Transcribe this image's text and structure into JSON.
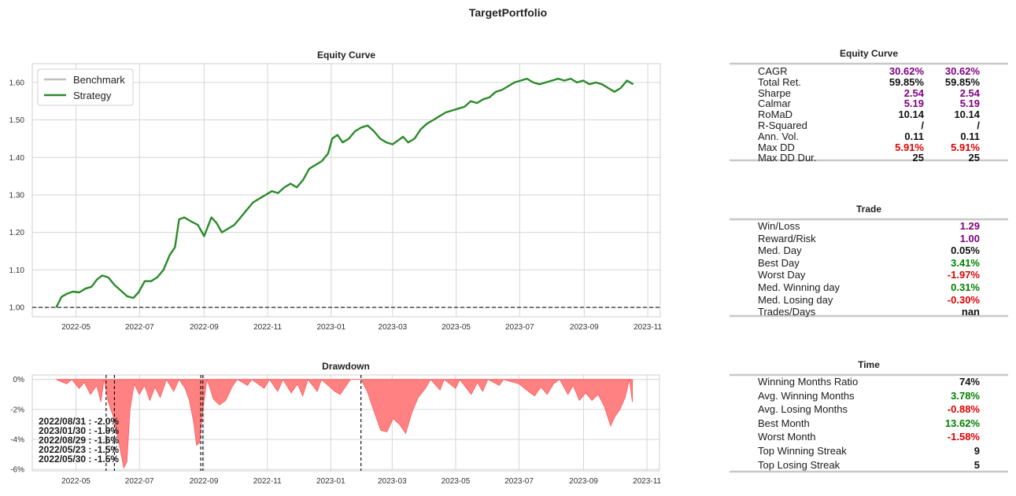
{
  "title": "TargetPortfolio",
  "chart_data": [
    {
      "type": "line",
      "title": "Equity Curve",
      "xlabel": "",
      "ylabel": "",
      "x_start": "2022-04-12",
      "x_end": "2023-10-18",
      "xlim": [
        "2022-03-20",
        "2023-11-13"
      ],
      "ylim": [
        0.975,
        1.65
      ],
      "x_ticks": [
        "2022-05",
        "2022-07",
        "2022-09",
        "2022-11",
        "2023-01",
        "2023-03",
        "2023-05",
        "2023-07",
        "2023-09",
        "2023-11"
      ],
      "y_ticks": [
        1.0,
        1.1,
        1.2,
        1.3,
        1.4,
        1.5,
        1.6
      ],
      "y_tick_labels": [
        "1.00",
        "1.10",
        "1.20",
        "1.30",
        "1.40",
        "1.50",
        "1.60"
      ],
      "grid": true,
      "legend": "top-left",
      "series": [
        {
          "name": "Benchmark",
          "color": "#c0c0c0",
          "values": []
        },
        {
          "name": "Strategy",
          "color": "#2a8a2a",
          "points": [
            [
              "2022-04-12",
              1.0
            ],
            [
              "2022-04-17",
              1.028
            ],
            [
              "2022-04-22",
              1.036
            ],
            [
              "2022-04-28",
              1.042
            ],
            [
              "2022-05-04",
              1.04
            ],
            [
              "2022-05-10",
              1.05
            ],
            [
              "2022-05-16",
              1.055
            ],
            [
              "2022-05-21",
              1.074
            ],
            [
              "2022-05-26",
              1.085
            ],
            [
              "2022-06-01",
              1.08
            ],
            [
              "2022-06-07",
              1.06
            ],
            [
              "2022-06-13",
              1.045
            ],
            [
              "2022-06-19",
              1.03
            ],
            [
              "2022-06-25",
              1.025
            ],
            [
              "2022-06-30",
              1.04
            ],
            [
              "2022-07-06",
              1.07
            ],
            [
              "2022-07-12",
              1.07
            ],
            [
              "2022-07-18",
              1.08
            ],
            [
              "2022-07-24",
              1.1
            ],
            [
              "2022-07-30",
              1.14
            ],
            [
              "2022-08-04",
              1.16
            ],
            [
              "2022-08-08",
              1.235
            ],
            [
              "2022-08-13",
              1.24
            ],
            [
              "2022-08-19",
              1.23
            ],
            [
              "2022-08-26",
              1.22
            ],
            [
              "2022-09-01",
              1.19
            ],
            [
              "2022-09-08",
              1.24
            ],
            [
              "2022-09-13",
              1.225
            ],
            [
              "2022-09-18",
              1.2
            ],
            [
              "2022-09-24",
              1.21
            ],
            [
              "2022-09-30",
              1.22
            ],
            [
              "2022-10-06",
              1.24
            ],
            [
              "2022-10-12",
              1.26
            ],
            [
              "2022-10-18",
              1.28
            ],
            [
              "2022-10-24",
              1.29
            ],
            [
              "2022-10-30",
              1.3
            ],
            [
              "2022-11-05",
              1.31
            ],
            [
              "2022-11-11",
              1.305
            ],
            [
              "2022-11-17",
              1.32
            ],
            [
              "2022-11-23",
              1.33
            ],
            [
              "2022-11-29",
              1.32
            ],
            [
              "2022-12-05",
              1.34
            ],
            [
              "2022-12-11",
              1.37
            ],
            [
              "2022-12-17",
              1.38
            ],
            [
              "2022-12-23",
              1.39
            ],
            [
              "2022-12-29",
              1.41
            ],
            [
              "2023-01-02",
              1.45
            ],
            [
              "2023-01-07",
              1.46
            ],
            [
              "2023-01-12",
              1.44
            ],
            [
              "2023-01-18",
              1.45
            ],
            [
              "2023-01-24",
              1.47
            ],
            [
              "2023-01-30",
              1.48
            ],
            [
              "2023-02-05",
              1.485
            ],
            [
              "2023-02-11",
              1.47
            ],
            [
              "2023-02-17",
              1.45
            ],
            [
              "2023-02-23",
              1.44
            ],
            [
              "2023-03-01",
              1.435
            ],
            [
              "2023-03-06",
              1.445
            ],
            [
              "2023-03-11",
              1.455
            ],
            [
              "2023-03-16",
              1.44
            ],
            [
              "2023-03-22",
              1.45
            ],
            [
              "2023-03-28",
              1.475
            ],
            [
              "2023-04-03",
              1.49
            ],
            [
              "2023-04-09",
              1.5
            ],
            [
              "2023-04-15",
              1.51
            ],
            [
              "2023-04-21",
              1.52
            ],
            [
              "2023-04-27",
              1.525
            ],
            [
              "2023-05-03",
              1.53
            ],
            [
              "2023-05-09",
              1.535
            ],
            [
              "2023-05-15",
              1.55
            ],
            [
              "2023-05-21",
              1.545
            ],
            [
              "2023-05-27",
              1.555
            ],
            [
              "2023-06-02",
              1.56
            ],
            [
              "2023-06-08",
              1.575
            ],
            [
              "2023-06-14",
              1.58
            ],
            [
              "2023-06-20",
              1.59
            ],
            [
              "2023-06-26",
              1.6
            ],
            [
              "2023-07-02",
              1.605
            ],
            [
              "2023-07-08",
              1.61
            ],
            [
              "2023-07-14",
              1.6
            ],
            [
              "2023-07-20",
              1.595
            ],
            [
              "2023-07-26",
              1.6
            ],
            [
              "2023-08-01",
              1.605
            ],
            [
              "2023-08-07",
              1.61
            ],
            [
              "2023-08-13",
              1.605
            ],
            [
              "2023-08-19",
              1.61
            ],
            [
              "2023-08-25",
              1.6
            ],
            [
              "2023-08-31",
              1.605
            ],
            [
              "2023-09-06",
              1.595
            ],
            [
              "2023-09-12",
              1.6
            ],
            [
              "2023-09-18",
              1.595
            ],
            [
              "2023-09-24",
              1.585
            ],
            [
              "2023-09-30",
              1.575
            ],
            [
              "2023-10-06",
              1.585
            ],
            [
              "2023-10-12",
              1.605
            ],
            [
              "2023-10-18",
              1.595
            ]
          ]
        }
      ],
      "hline": {
        "y": 1.0,
        "style": "dashed"
      }
    },
    {
      "type": "area",
      "title": "Drawdown",
      "xlim": [
        "2022-03-20",
        "2023-11-13"
      ],
      "ylim": [
        -6.1,
        0.3
      ],
      "x_ticks": [
        "2022-05",
        "2022-07",
        "2022-09",
        "2022-11",
        "2023-01",
        "2023-03",
        "2023-05",
        "2023-07",
        "2023-09",
        "2023-11"
      ],
      "y_ticks": [
        0,
        -2,
        -4,
        -6
      ],
      "y_tick_labels": [
        "0%",
        "-2%",
        "-4%",
        "-6%"
      ],
      "grid": true,
      "fill_color": "#ff7a7a",
      "line_color": "#ff5a5a",
      "points": [
        [
          "2022-04-12",
          0
        ],
        [
          "2022-04-22",
          -0.3
        ],
        [
          "2022-04-27",
          0
        ],
        [
          "2022-05-04",
          -0.6
        ],
        [
          "2022-05-09",
          -0.2
        ],
        [
          "2022-05-15",
          -1.0
        ],
        [
          "2022-05-21",
          -0.4
        ],
        [
          "2022-05-25",
          -1.5
        ],
        [
          "2022-05-28",
          0
        ],
        [
          "2022-06-01",
          -1.5
        ],
        [
          "2022-06-06",
          -2.5
        ],
        [
          "2022-06-12",
          -4.5
        ],
        [
          "2022-06-16",
          -5.9
        ],
        [
          "2022-06-19",
          -5.5
        ],
        [
          "2022-06-22",
          -2.0
        ],
        [
          "2022-06-26",
          -0.3
        ],
        [
          "2022-07-01",
          -1.0
        ],
        [
          "2022-07-06",
          -0.4
        ],
        [
          "2022-07-11",
          -1.4
        ],
        [
          "2022-07-16",
          -0.5
        ],
        [
          "2022-07-21",
          -1.2
        ],
        [
          "2022-07-27",
          0
        ],
        [
          "2022-08-03",
          -0.8
        ],
        [
          "2022-08-08",
          0
        ],
        [
          "2022-08-14",
          -0.6
        ],
        [
          "2022-08-18",
          -1.4
        ],
        [
          "2022-08-22",
          -2.8
        ],
        [
          "2022-08-25",
          -4.4
        ],
        [
          "2022-08-28",
          -4.2
        ],
        [
          "2022-08-31",
          -2.0
        ],
        [
          "2022-09-04",
          0
        ],
        [
          "2022-09-07",
          -0.6
        ],
        [
          "2022-09-10",
          -1.3
        ],
        [
          "2022-09-16",
          -1.7
        ],
        [
          "2022-09-22",
          -1.4
        ],
        [
          "2022-09-28",
          -0.5
        ],
        [
          "2022-10-03",
          0
        ],
        [
          "2022-10-13",
          -0.4
        ],
        [
          "2022-10-17",
          0
        ],
        [
          "2022-10-29",
          -0.6
        ],
        [
          "2022-11-03",
          0
        ],
        [
          "2022-11-11",
          -0.8
        ],
        [
          "2022-11-16",
          0
        ],
        [
          "2022-11-24",
          -0.9
        ],
        [
          "2022-11-30",
          -0.3
        ],
        [
          "2022-12-05",
          -1.1
        ],
        [
          "2022-12-10",
          0
        ],
        [
          "2022-12-19",
          -0.8
        ],
        [
          "2022-12-23",
          0
        ],
        [
          "2023-01-05",
          -0.8
        ],
        [
          "2023-01-10",
          -1.0
        ],
        [
          "2023-01-15",
          -0.5
        ],
        [
          "2023-01-20",
          0
        ],
        [
          "2023-01-30",
          0
        ],
        [
          "2023-02-05",
          -0.8
        ],
        [
          "2023-02-12",
          -2.2
        ],
        [
          "2023-02-18",
          -3.4
        ],
        [
          "2023-02-24",
          -3.5
        ],
        [
          "2023-03-02",
          -2.6
        ],
        [
          "2023-03-08",
          -3.0
        ],
        [
          "2023-03-14",
          -3.6
        ],
        [
          "2023-03-20",
          -2.2
        ],
        [
          "2023-03-26",
          -1.2
        ],
        [
          "2023-04-02",
          -0.6
        ],
        [
          "2023-04-07",
          0
        ],
        [
          "2023-04-16",
          -0.7
        ],
        [
          "2023-04-20",
          0
        ],
        [
          "2023-05-01",
          -0.6
        ],
        [
          "2023-05-05",
          0
        ],
        [
          "2023-05-16",
          -1.0
        ],
        [
          "2023-05-22",
          -0.2
        ],
        [
          "2023-05-27",
          -0.8
        ],
        [
          "2023-06-01",
          0
        ],
        [
          "2023-06-12",
          -0.4
        ],
        [
          "2023-06-16",
          0
        ],
        [
          "2023-07-01",
          -0.3
        ],
        [
          "2023-07-10",
          -0.8
        ],
        [
          "2023-07-16",
          -1.1
        ],
        [
          "2023-07-22",
          -0.5
        ],
        [
          "2023-07-28",
          -1.0
        ],
        [
          "2023-08-03",
          -0.3
        ],
        [
          "2023-08-09",
          0
        ],
        [
          "2023-08-17",
          -1.0
        ],
        [
          "2023-08-22",
          -0.4
        ],
        [
          "2023-08-28",
          -1.4
        ],
        [
          "2023-09-03",
          -0.9
        ],
        [
          "2023-09-09",
          -1.4
        ],
        [
          "2023-09-15",
          -1.0
        ],
        [
          "2023-09-21",
          -1.8
        ],
        [
          "2023-09-27",
          -3.1
        ],
        [
          "2023-10-01",
          -2.5
        ],
        [
          "2023-10-06",
          -2.0
        ],
        [
          "2023-10-11",
          -1.2
        ],
        [
          "2023-10-15",
          0
        ],
        [
          "2023-10-18",
          -1.5
        ]
      ],
      "vlines": [
        "2022-05-30",
        "2022-06-07",
        "2022-08-29",
        "2022-08-31",
        "2023-01-30"
      ],
      "annotations": [
        "2022/08/31 : -2.0%",
        "2023/01/30 : -1.9%",
        "2022/08/29 : -1.6%",
        "2022/05/23 : -1.5%",
        "2022/05/30 : -1.5%"
      ]
    }
  ],
  "tables": [
    {
      "title": "Equity Curve",
      "rows": [
        {
          "label": "CAGR",
          "v1": "30.62%",
          "v2": "30.62%",
          "color": "purple"
        },
        {
          "label": "Total Ret.",
          "v1": "59.85%",
          "v2": "59.85%",
          "color": "black"
        },
        {
          "label": "Sharpe",
          "v1": "2.54",
          "v2": "2.54",
          "color": "purple"
        },
        {
          "label": "Calmar",
          "v1": "5.19",
          "v2": "5.19",
          "color": "purple"
        },
        {
          "label": "RoMaD",
          "v1": "10.14",
          "v2": "10.14",
          "color": "black"
        },
        {
          "label": "R-Squared",
          "v1": "/",
          "v2": "/",
          "color": "black"
        },
        {
          "label": "Ann. Vol.",
          "v1": "0.11",
          "v2": "0.11",
          "color": "black"
        },
        {
          "label": "Max DD",
          "v1": "5.91%",
          "v2": "5.91%",
          "color": "red"
        },
        {
          "label": "Max DD Dur.",
          "v1": "25",
          "v2": "25",
          "color": "black"
        }
      ]
    },
    {
      "title": "Trade",
      "rows": [
        {
          "label": "Win/Loss",
          "v1": "1.29",
          "color": "purple"
        },
        {
          "label": "Reward/Risk",
          "v1": "1.00",
          "color": "purple"
        },
        {
          "label": "Med. Day",
          "v1": "0.05%",
          "color": "black"
        },
        {
          "label": "Best Day",
          "v1": "3.41%",
          "color": "green"
        },
        {
          "label": "Worst Day",
          "v1": "-1.97%",
          "color": "red"
        },
        {
          "label": "Med. Winning day",
          "v1": "0.31%",
          "color": "green"
        },
        {
          "label": "Med. Losing day",
          "v1": "-0.30%",
          "color": "red"
        },
        {
          "label": "Trades/Days",
          "v1": "nan",
          "color": "black"
        }
      ]
    },
    {
      "title": "Time",
      "rows": [
        {
          "label": "Winning Months Ratio",
          "v1": "74%",
          "color": "black"
        },
        {
          "label": "Avg. Winning Months",
          "v1": "3.78%",
          "color": "green"
        },
        {
          "label": "Avg. Losing Months",
          "v1": "-0.88%",
          "color": "red"
        },
        {
          "label": "Best Month",
          "v1": "13.62%",
          "color": "green"
        },
        {
          "label": "Worst Month",
          "v1": "-1.58%",
          "color": "red"
        },
        {
          "label": "Top Winning Streak",
          "v1": "9",
          "color": "black"
        },
        {
          "label": "Top Losing Streak",
          "v1": "5",
          "color": "black"
        }
      ]
    }
  ]
}
